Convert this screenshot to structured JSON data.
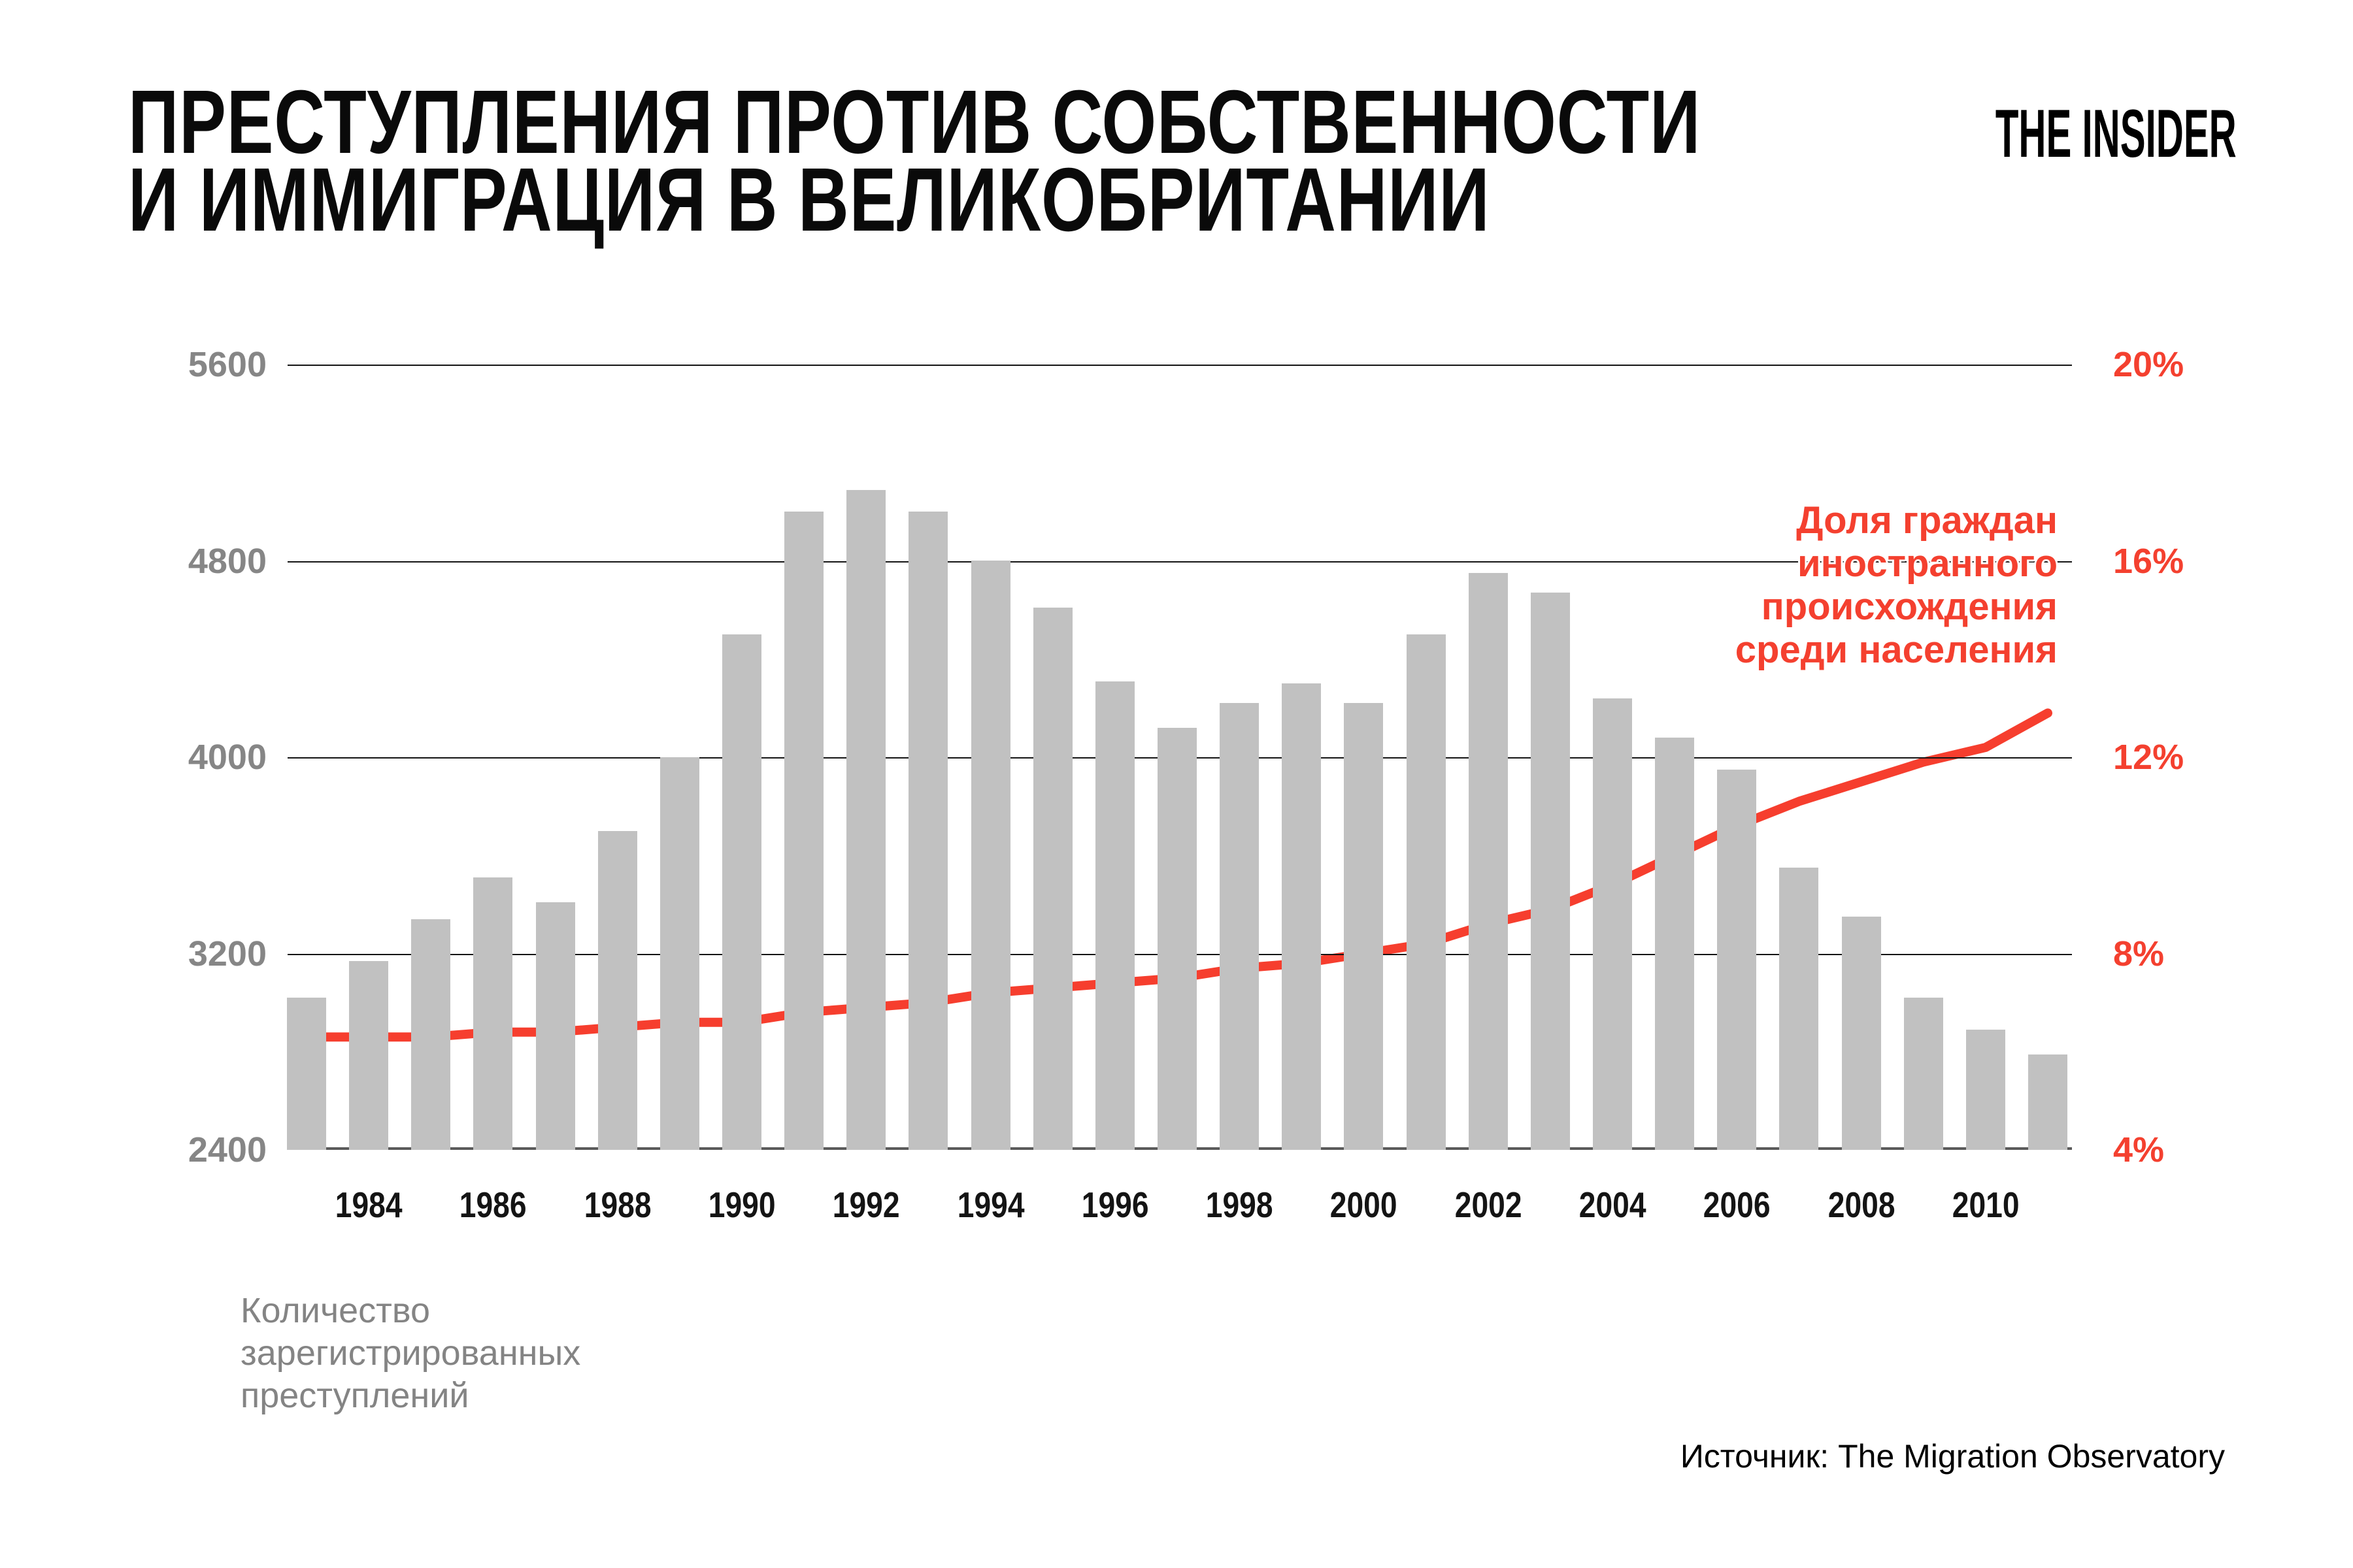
{
  "title": {
    "line1": "ПРЕСТУПЛЕНИЯ ПРОТИВ СОБСТВЕННОСТИ",
    "line2": "И ИММИГРАЦИЯ В ВЕЛИКОБРИТАНИИ"
  },
  "logo": "THE INSIDER",
  "legend": {
    "lines": [
      "Доля граждан",
      "иностранного",
      "происхождения",
      "среди населения"
    ]
  },
  "left_axis_caption": {
    "lines": [
      "Количество",
      "зарегистрированных",
      "преступлений"
    ]
  },
  "source": "Источник: The Migration Observatory",
  "colors": {
    "bar": "#c1c1c1",
    "line": "#f63e2e",
    "line_halo": "#ffffff",
    "red_text": "#f4402f",
    "gray_text": "#868686",
    "grid": "#141414",
    "baseline": "#5a5a5a"
  },
  "chart_data": {
    "type": "bar+line",
    "title": "Преступления против собственности и иммиграция в Великобритании",
    "x": [
      1983,
      1984,
      1985,
      1986,
      1987,
      1988,
      1989,
      1990,
      1991,
      1992,
      1993,
      1994,
      1995,
      1996,
      1997,
      1998,
      1999,
      2000,
      2001,
      2002,
      2003,
      2004,
      2005,
      2006,
      2007,
      2008,
      2009,
      2010,
      2011
    ],
    "series": [
      {
        "name": "Количество зарегистрированных преступлений",
        "type": "bar",
        "axis": "left",
        "values": [
          3020,
          3170,
          3340,
          3510,
          3410,
          3700,
          4000,
          4500,
          5000,
          5090,
          5000,
          4800,
          4610,
          4310,
          4120,
          4220,
          4300,
          4220,
          4500,
          4750,
          4670,
          4240,
          4080,
          3950,
          3550,
          3350,
          3020,
          2890,
          2790
        ]
      },
      {
        "name": "Доля граждан иностранного происхождения среди населения",
        "type": "line",
        "axis": "right",
        "values": [
          6.3,
          6.3,
          6.3,
          6.4,
          6.4,
          6.5,
          6.6,
          6.6,
          6.8,
          6.9,
          7.0,
          7.2,
          7.3,
          7.4,
          7.5,
          7.7,
          7.8,
          8.0,
          8.2,
          8.6,
          8.9,
          9.4,
          10.0,
          10.6,
          11.1,
          11.5,
          11.9,
          12.2,
          12.9
        ]
      }
    ],
    "left_ylim": [
      2400,
      5600
    ],
    "left_ticks": [
      5600,
      4800,
      4000,
      3200,
      2400
    ],
    "right_ylim": [
      4,
      20
    ],
    "right_ticks": [
      "20%",
      "16%",
      "12%",
      "8%",
      "4%"
    ],
    "x_tick_years": [
      1984,
      1986,
      1988,
      1990,
      1992,
      1994,
      1996,
      1998,
      2000,
      2002,
      2004,
      2006,
      2008,
      2010
    ],
    "grid": "horizontal"
  }
}
